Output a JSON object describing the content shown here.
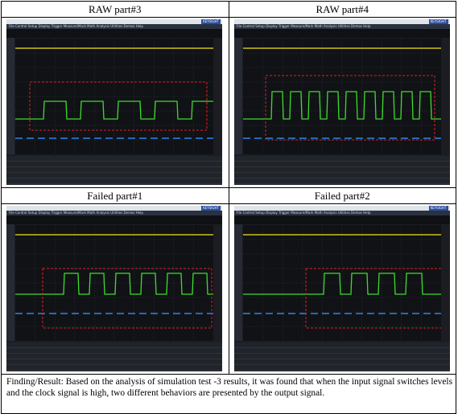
{
  "cells": [
    {
      "caption": "RAW part#3"
    },
    {
      "caption": "RAW part#4"
    },
    {
      "caption": "Failed part#1"
    },
    {
      "caption": "Failed part#2"
    }
  ],
  "finding": "Finding/Result: Based on the analysis of simulation test -3 results, it was found that when the input signal switches levels and the clock signal is high, two different behaviors are presented by the output signal.",
  "scope": {
    "menu": "File Control Setup Display Trigger Measure/Mark Math Analysis Utilities Demos Help",
    "brand": "KEYSIGHT",
    "colors": {
      "ch1": "#f2e51b",
      "ch2": "#3fdc2c",
      "ch3": "#2f8fff",
      "box": "#e02020",
      "grid": "#3a3f48"
    }
  }
}
